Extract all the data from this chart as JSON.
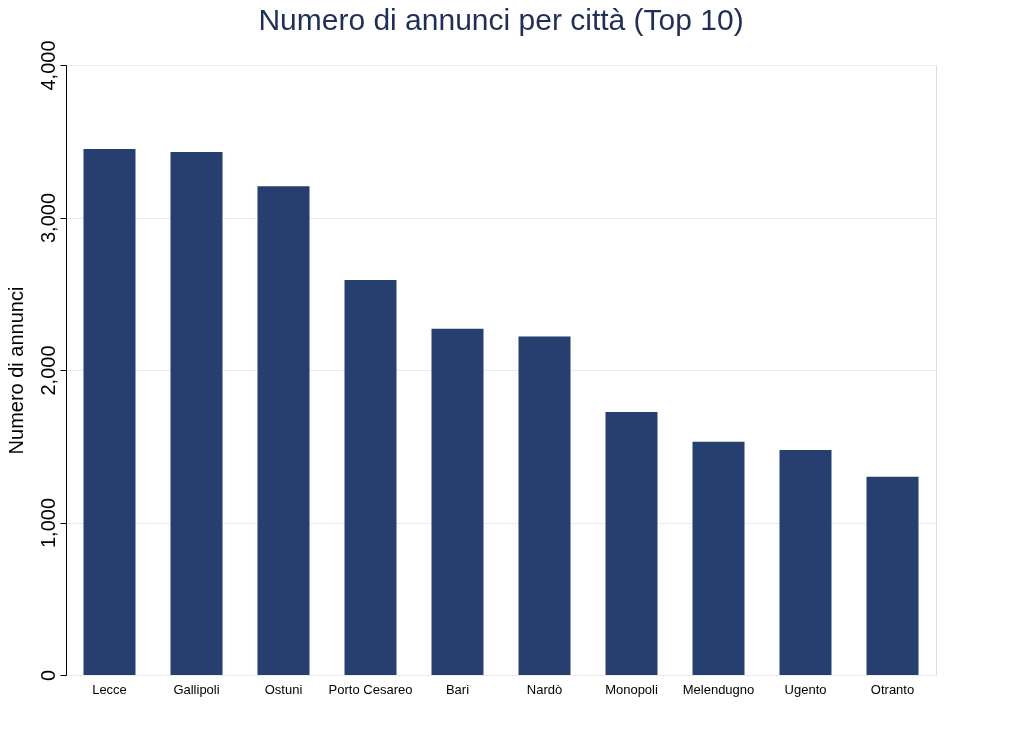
{
  "chart_data": {
    "type": "bar",
    "title": "Numero di annunci per città (Top 10)",
    "ylabel": "Numero di annunci",
    "categories": [
      "Lecce",
      "Gallipoli",
      "Ostuni",
      "Porto Cesareo",
      "Bari",
      "Nardò",
      "Monopoli",
      "Melendugno",
      "Ugento",
      "Otranto"
    ],
    "values": [
      3450,
      3430,
      3205,
      2590,
      2270,
      2220,
      1725,
      1530,
      1475,
      1300
    ],
    "color": "#263f6e",
    "ylim": [
      0,
      4000
    ],
    "yticks": [
      0,
      {
        "value": 1000,
        "label": "1,000"
      },
      {
        "value": 2000,
        "label": "2,000"
      },
      {
        "value": 3000,
        "label": "3,000"
      },
      {
        "value": 4000,
        "label": "4,000"
      }
    ],
    "grid": "y"
  }
}
